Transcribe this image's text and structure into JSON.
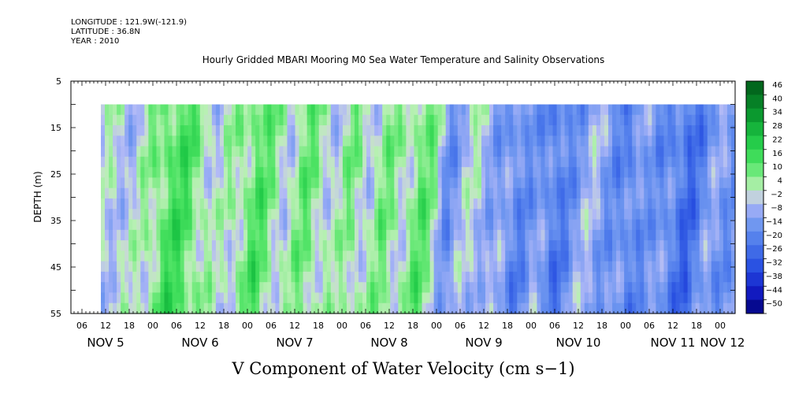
{
  "header": {
    "longitude": "LONGITUDE : 121.9W(-121.9)",
    "latitude": "LATITUDE : 36.8N",
    "year": "YEAR : 2010"
  },
  "chart_data": {
    "type": "heatmap",
    "title": "Hourly Gridded MBARI Mooring M0 Sea Water Temperature and Salinity Observations",
    "xlabel": "V Component of Water Velocity (cm s−1)",
    "ylabel": "DEPTH (m)",
    "ylim": [
      55,
      5
    ],
    "y_ticks": [
      5,
      15,
      25,
      35,
      45,
      55
    ],
    "x_hour_ticks": [
      "06",
      "12",
      "18",
      "00",
      "06",
      "12",
      "18",
      "00",
      "06",
      "12",
      "18",
      "00",
      "06",
      "12",
      "18",
      "00",
      "06",
      "12",
      "18",
      "00",
      "06",
      "12",
      "18",
      "00",
      "06",
      "12",
      "18",
      "00"
    ],
    "x_date_labels": [
      "NOV  5",
      "NOV  6",
      "NOV  7",
      "NOV  8",
      "NOV  9",
      "NOV 10",
      "NOV 11",
      "NOV 12"
    ],
    "data_depth_range_m": [
      10,
      55
    ],
    "colorbar_levels": [
      "46",
      "40",
      "34",
      "28",
      "22",
      "16",
      "10",
      "4",
      "−2",
      "−8",
      "−14",
      "−20",
      "−26",
      "−32",
      "−38",
      "−44",
      "−50"
    ],
    "colorbar_range": [
      -50,
      50
    ],
    "time_profile": [
      {
        "t": 0.0,
        "v": -4
      },
      {
        "t": 0.03,
        "v": 2
      },
      {
        "t": 0.06,
        "v": -2
      },
      {
        "t": 0.09,
        "v": 8
      },
      {
        "t": 0.11,
        "v": 16
      },
      {
        "t": 0.14,
        "v": 14
      },
      {
        "t": 0.17,
        "v": 6
      },
      {
        "t": 0.19,
        "v": -2
      },
      {
        "t": 0.22,
        "v": 6
      },
      {
        "t": 0.25,
        "v": 14
      },
      {
        "t": 0.28,
        "v": 6
      },
      {
        "t": 0.3,
        "v": 2
      },
      {
        "t": 0.33,
        "v": 10
      },
      {
        "t": 0.36,
        "v": 4
      },
      {
        "t": 0.38,
        "v": 0
      },
      {
        "t": 0.4,
        "v": 8
      },
      {
        "t": 0.43,
        "v": 2
      },
      {
        "t": 0.45,
        "v": 8
      },
      {
        "t": 0.48,
        "v": 4
      },
      {
        "t": 0.51,
        "v": 12
      },
      {
        "t": 0.53,
        "v": 6
      },
      {
        "t": 0.55,
        "v": -12
      },
      {
        "t": 0.58,
        "v": -4
      },
      {
        "t": 0.6,
        "v": 0
      },
      {
        "t": 0.63,
        "v": -8
      },
      {
        "t": 0.66,
        "v": -16
      },
      {
        "t": 0.69,
        "v": -8
      },
      {
        "t": 0.72,
        "v": -20
      },
      {
        "t": 0.75,
        "v": -10
      },
      {
        "t": 0.78,
        "v": -6
      },
      {
        "t": 0.81,
        "v": -10
      },
      {
        "t": 0.84,
        "v": -18
      },
      {
        "t": 0.87,
        "v": -8
      },
      {
        "t": 0.9,
        "v": -16
      },
      {
        "t": 0.93,
        "v": -22
      },
      {
        "t": 0.96,
        "v": -12
      },
      {
        "t": 1.0,
        "v": -10
      }
    ]
  }
}
